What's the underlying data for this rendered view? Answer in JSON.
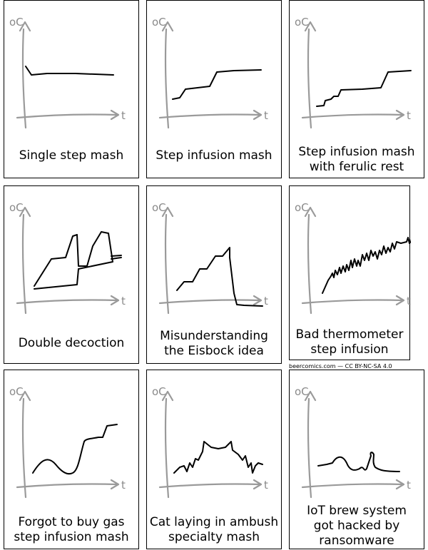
{
  "axis": {
    "y_label": "oC",
    "x_label": "t"
  },
  "panels": [
    {
      "caption": [
        "Single step mash"
      ]
    },
    {
      "caption": [
        "Step infusion mash"
      ]
    },
    {
      "caption": [
        "Step infusion mash",
        "with ferulic rest"
      ]
    },
    {
      "caption": [
        "Double decoction"
      ]
    },
    {
      "caption": [
        "Misunderstanding",
        "the Eisbock idea"
      ]
    },
    {
      "caption": [
        "Bad thermometer",
        "step infusion"
      ]
    },
    {
      "caption": [
        "Forgot to buy gas",
        "step infusion mash"
      ]
    },
    {
      "caption": [
        "Cat laying in ambush",
        "specialty mash"
      ]
    },
    {
      "caption": [
        "IoT brew system",
        "got hacked by",
        "ransomware"
      ]
    }
  ],
  "credit": "beercomics.com — CC BY-NC-SA 4.0"
}
